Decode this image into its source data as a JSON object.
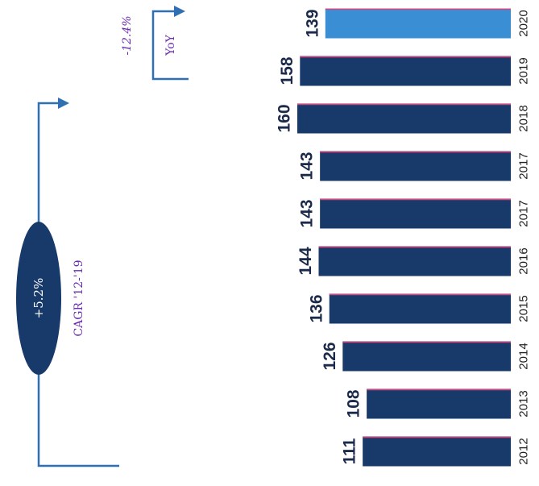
{
  "chart_data": {
    "type": "bar",
    "orientation": "horizontal-rotated",
    "categories": [
      "2012",
      "2013",
      "2014",
      "2015",
      "2016",
      "2017",
      "2017",
      "2018",
      "2019",
      "2020"
    ],
    "values": [
      111,
      108,
      126,
      136,
      144,
      143,
      143,
      160,
      158,
      139
    ],
    "value_labels": [
      "111",
      "108",
      "126",
      "136",
      "144",
      "143",
      "143",
      "160",
      "158",
      "139"
    ],
    "title": "",
    "xlabel": "",
    "ylabel": "",
    "ylim": [
      0,
      170
    ],
    "grid": false,
    "legend": "none",
    "bar_colors": [
      "#173a6b",
      "#173a6b",
      "#173a6b",
      "#173a6b",
      "#173a6b",
      "#173a6b",
      "#173a6b",
      "#173a6b",
      "#173a6b",
      "#3a8fd4"
    ],
    "annotations": {
      "cagr_value": "+5.2%",
      "cagr_label": "CAGR '12-'19",
      "yoy_value": "-12.4%",
      "yoy_label": "YoY"
    }
  },
  "colors": {
    "bar_dark": "#173a6b",
    "bar_highlight": "#3a8fd4",
    "arrow": "#2f6fb3",
    "handwriting": "#6b2bb0",
    "underline": "#e0407a"
  }
}
